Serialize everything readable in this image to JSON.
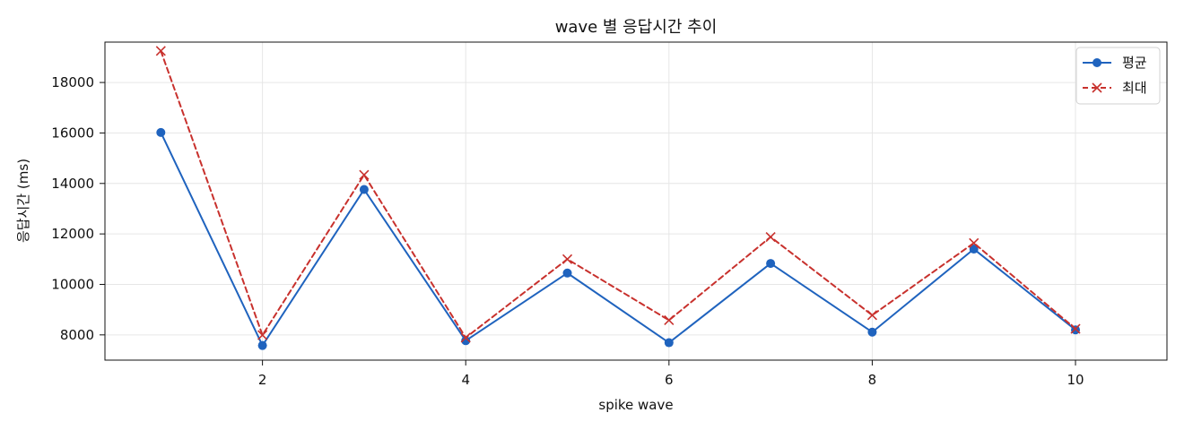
{
  "chart_data": {
    "type": "line",
    "title": "wave 별 응답시간 추이",
    "xlabel": "spike wave",
    "ylabel": "응답시간 (ms)",
    "x": [
      1,
      2,
      3,
      4,
      5,
      6,
      7,
      8,
      9,
      10
    ],
    "series": [
      {
        "name": "평균",
        "values": [
          16020,
          7580,
          13760,
          7770,
          10450,
          7690,
          10830,
          8110,
          11400,
          8200
        ],
        "color": "#1f63be",
        "line_style": "solid",
        "marker": "circle"
      },
      {
        "name": "최대",
        "values": [
          19250,
          7990,
          14340,
          7890,
          11000,
          8580,
          11880,
          8780,
          11640,
          8240
        ],
        "color": "#c8312d",
        "line_style": "dashed",
        "marker": "x"
      }
    ],
    "xlim": [
      0.45,
      10.9
    ],
    "ylim": [
      7000,
      19600
    ],
    "xticks": [
      2,
      4,
      6,
      8,
      10
    ],
    "yticks": [
      8000,
      10000,
      12000,
      14000,
      16000,
      18000
    ],
    "grid": true,
    "legend_position": "top-right"
  }
}
